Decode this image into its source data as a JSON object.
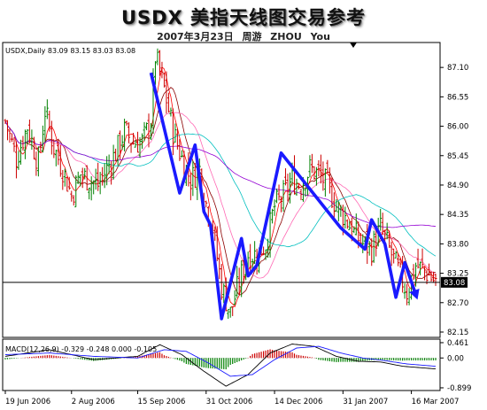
{
  "title": "USDX 美指天线图交易参考",
  "subtitle": "2007年3月23日   周游 ZHOU You",
  "chart_data": [
    {
      "type": "candlestick",
      "header": "USDX,Daily  83.09 83.15 83.03 83.08",
      "ylim": [
        82.1,
        87.5
      ],
      "y_ticks": [
        "87.10",
        "86.55",
        "86.00",
        "85.45",
        "84.90",
        "84.35",
        "83.80",
        "83.25",
        "82.70",
        "82.15"
      ],
      "y_tick_values": [
        87.1,
        86.55,
        86.0,
        85.45,
        84.9,
        84.35,
        83.8,
        83.25,
        82.7,
        82.15
      ],
      "current_price": 83.08,
      "current_price_label": "83.08",
      "x_labels": [
        "19 Jun 2006",
        "2 Aug 2006",
        "15 Sep 2006",
        "31 Oct 2006",
        "14 Dec 2006",
        "31 Jan 2007",
        "16 Mar 2007"
      ],
      "n_bars": 196,
      "x_label_index": [
        0,
        30,
        60,
        91,
        122,
        153,
        184
      ],
      "close_anchors": [
        [
          0,
          86.1
        ],
        [
          5,
          85.4
        ],
        [
          10,
          86.0
        ],
        [
          15,
          85.3
        ],
        [
          18,
          86.3
        ],
        [
          22,
          85.6
        ],
        [
          26,
          85.2
        ],
        [
          30,
          84.7
        ],
        [
          34,
          85.1
        ],
        [
          38,
          85.0
        ],
        [
          42,
          84.9
        ],
        [
          46,
          85.2
        ],
        [
          50,
          85.5
        ],
        [
          54,
          85.9
        ],
        [
          58,
          85.7
        ],
        [
          62,
          85.7
        ],
        [
          66,
          86.1
        ],
        [
          68,
          87.3
        ],
        [
          72,
          86.7
        ],
        [
          76,
          85.9
        ],
        [
          80,
          85.4
        ],
        [
          84,
          85.0
        ],
        [
          88,
          85.2
        ],
        [
          90,
          84.7
        ],
        [
          94,
          84.1
        ],
        [
          98,
          83.0
        ],
        [
          102,
          82.5
        ],
        [
          106,
          83.1
        ],
        [
          110,
          83.6
        ],
        [
          114,
          83.6
        ],
        [
          118,
          83.8
        ],
        [
          122,
          84.5
        ],
        [
          126,
          84.7
        ],
        [
          130,
          85.0
        ],
        [
          134,
          84.9
        ],
        [
          138,
          85.2
        ],
        [
          142,
          85.1
        ],
        [
          146,
          84.9
        ],
        [
          150,
          84.5
        ],
        [
          154,
          84.3
        ],
        [
          158,
          84.0
        ],
        [
          162,
          83.8
        ],
        [
          166,
          83.7
        ],
        [
          170,
          84.1
        ],
        [
          174,
          83.7
        ],
        [
          178,
          83.3
        ],
        [
          182,
          82.9
        ],
        [
          186,
          83.4
        ],
        [
          190,
          83.3
        ],
        [
          195,
          83.08
        ]
      ],
      "trend_path": [
        [
          66,
          87.0
        ],
        [
          79,
          84.75
        ],
        [
          86,
          85.65
        ],
        [
          90,
          84.4
        ],
        [
          93,
          84.15
        ],
        [
          98,
          82.4
        ],
        [
          107,
          83.9
        ],
        [
          110,
          83.2
        ],
        [
          114,
          83.4
        ],
        [
          125,
          85.5
        ],
        [
          152,
          84.1
        ],
        [
          163,
          83.7
        ],
        [
          166,
          84.25
        ],
        [
          172,
          83.8
        ],
        [
          177,
          82.8
        ],
        [
          181,
          83.45
        ],
        [
          186,
          82.85
        ]
      ],
      "ma_colors": [
        "#ff0000",
        "#8b0000",
        "#ff69b4",
        "#00bfbf",
        "#9400d3"
      ]
    },
    {
      "type": "histogram+line",
      "header": "MACD(12,26,9) -0.329 -0.248 0.000 -0.105",
      "ylim": [
        -0.9,
        0.46
      ],
      "y_ticks": [
        "0.461",
        "0.00",
        "-0.899"
      ],
      "y_tick_values": [
        0.461,
        0.0,
        -0.899
      ],
      "macd_anchors": [
        [
          0,
          0.05
        ],
        [
          20,
          0.25
        ],
        [
          40,
          -0.05
        ],
        [
          60,
          0.05
        ],
        [
          70,
          0.4
        ],
        [
          80,
          0.1
        ],
        [
          90,
          -0.4
        ],
        [
          100,
          -0.85
        ],
        [
          110,
          -0.5
        ],
        [
          120,
          0.15
        ],
        [
          130,
          0.42
        ],
        [
          140,
          0.35
        ],
        [
          150,
          0.05
        ],
        [
          160,
          -0.1
        ],
        [
          170,
          -0.12
        ],
        [
          180,
          -0.25
        ],
        [
          195,
          -0.33
        ]
      ],
      "signal_anchors": [
        [
          0,
          0.1
        ],
        [
          20,
          0.15
        ],
        [
          40,
          0.05
        ],
        [
          60,
          0.0
        ],
        [
          72,
          0.25
        ],
        [
          82,
          0.2
        ],
        [
          92,
          -0.15
        ],
        [
          102,
          -0.55
        ],
        [
          112,
          -0.5
        ],
        [
          122,
          -0.05
        ],
        [
          132,
          0.3
        ],
        [
          142,
          0.35
        ],
        [
          152,
          0.15
        ],
        [
          162,
          0.0
        ],
        [
          172,
          -0.08
        ],
        [
          182,
          -0.18
        ],
        [
          195,
          -0.25
        ]
      ]
    }
  ]
}
